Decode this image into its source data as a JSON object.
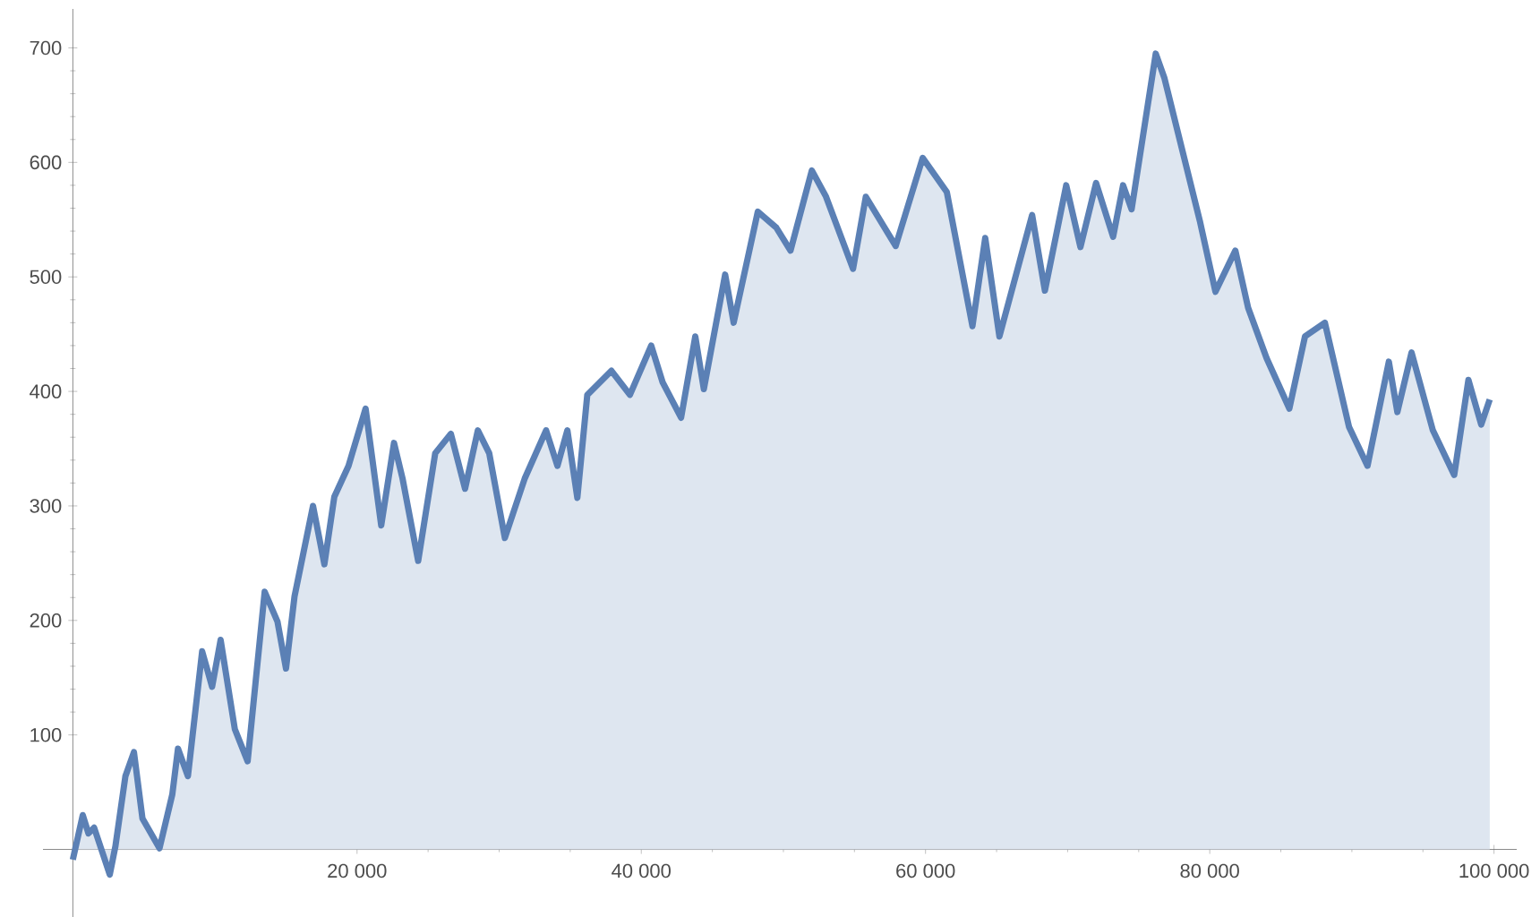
{
  "chart_data": {
    "type": "area",
    "color": "#5b80b5",
    "x": [
      0,
      700,
      1100,
      1500,
      2600,
      3000,
      3700,
      4300,
      4900,
      6100,
      7000,
      7400,
      8100,
      9100,
      9800,
      10400,
      11400,
      12300,
      13500,
      14400,
      15000,
      15600,
      16900,
      17700,
      18400,
      19400,
      20600,
      21700,
      22600,
      23200,
      24300,
      25500,
      26600,
      27600,
      28500,
      29300,
      30400,
      31800,
      33300,
      34100,
      34800,
      35500,
      36200,
      37900,
      39200,
      40700,
      41500,
      42800,
      43800,
      44400,
      45900,
      46500,
      48200,
      49500,
      50500,
      52000,
      53000,
      54900,
      55800,
      57900,
      59800,
      61500,
      63300,
      64200,
      65200,
      67500,
      68400,
      69900,
      70900,
      72000,
      73200,
      73900,
      74500,
      76200,
      76800,
      79300,
      80400,
      81800,
      82700,
      84000,
      85600,
      86700,
      88100,
      89800,
      91100,
      92600,
      93200,
      94200,
      95700,
      97200,
      98200,
      99100,
      99700
    ],
    "values": [
      -9,
      30,
      14,
      19,
      -22,
      3,
      64,
      85,
      27,
      1,
      48,
      88,
      64,
      173,
      142,
      183,
      105,
      77,
      225,
      199,
      158,
      221,
      300,
      249,
      308,
      335,
      385,
      283,
      355,
      324,
      252,
      346,
      363,
      315,
      366,
      346,
      272,
      324,
      366,
      335,
      366,
      307,
      397,
      418,
      397,
      440,
      408,
      377,
      448,
      402,
      502,
      460,
      557,
      543,
      523,
      593,
      570,
      507,
      570,
      527,
      604,
      574,
      457,
      534,
      448,
      554,
      488,
      580,
      526,
      582,
      535,
      580,
      559,
      695,
      674,
      549,
      487,
      523,
      473,
      429,
      385,
      448,
      460,
      369,
      335,
      426,
      382,
      434,
      366,
      327,
      410,
      371,
      393
    ],
    "xlim": [
      -2100,
      101600
    ],
    "ylim": [
      -59,
      734
    ],
    "xticks": [
      {
        "value": 20000,
        "label": "20 000"
      },
      {
        "value": 40000,
        "label": "40 000"
      },
      {
        "value": 60000,
        "label": "60 000"
      },
      {
        "value": 80000,
        "label": "80 000"
      },
      {
        "value": 100000,
        "label": "100 000"
      }
    ],
    "yticks": [
      100,
      200,
      300,
      400,
      500,
      600,
      700
    ]
  }
}
